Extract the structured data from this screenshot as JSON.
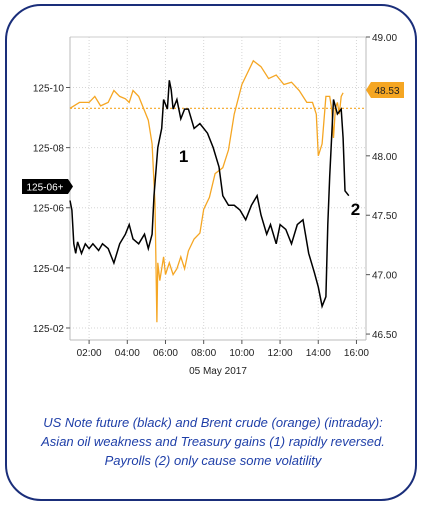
{
  "chart_data": {
    "type": "line",
    "date_label": "05 May 2017",
    "x_ticks": [
      "02:00",
      "04:00",
      "06:00",
      "08:00",
      "10:00",
      "12:00",
      "14:00",
      "16:00"
    ],
    "x_range": [
      1.0,
      16.5
    ],
    "left_axis": {
      "ticks": [
        "125-02",
        "125-04",
        "125-06",
        "125-08",
        "125-10"
      ],
      "tick_values": [
        125.0625,
        125.125,
        125.1875,
        125.25,
        125.3125
      ],
      "range": [
        125.05,
        125.365
      ],
      "last_value_label": "125-06+"
    },
    "right_axis": {
      "ticks": [
        "46.50",
        "47.00",
        "47.50",
        "48.00",
        "49.00"
      ],
      "tick_values": [
        46.5,
        47.0,
        47.5,
        48.0,
        49.0
      ],
      "range": [
        46.45,
        49.0
      ],
      "last_value_label": "48.53",
      "reference_level": 48.4
    },
    "series": [
      {
        "color": "#000000",
        "axis": "left",
        "x": [
          1.0,
          1.1,
          1.2,
          1.3,
          1.4,
          1.6,
          1.8,
          2.0,
          2.2,
          2.5,
          2.7,
          3.0,
          3.3,
          3.6,
          3.9,
          4.1,
          4.3,
          4.6,
          4.9,
          5.1,
          5.3,
          5.4,
          5.6,
          5.8,
          5.9,
          6.1,
          6.2,
          6.3,
          6.4,
          6.6,
          6.8,
          7.0,
          7.2,
          7.5,
          7.8,
          8.2,
          8.5,
          8.8,
          9.0,
          9.3,
          9.6,
          9.9,
          10.2,
          10.5,
          10.8,
          11.0,
          11.3,
          11.5,
          11.8,
          12.0,
          12.3,
          12.6,
          12.9,
          13.2,
          13.5,
          13.8,
          14.0,
          14.2,
          14.4,
          14.5,
          14.6,
          14.8,
          15.0,
          15.2,
          15.3,
          15.4,
          15.6
        ],
        "y": [
          125.195,
          125.185,
          125.15,
          125.14,
          125.152,
          125.14,
          125.15,
          125.145,
          125.15,
          125.143,
          125.15,
          125.145,
          125.13,
          125.15,
          125.16,
          125.17,
          125.155,
          125.15,
          125.16,
          125.145,
          125.16,
          125.2,
          125.25,
          125.27,
          125.3,
          125.29,
          125.32,
          125.31,
          125.29,
          125.3,
          125.28,
          125.29,
          125.29,
          125.27,
          125.275,
          125.265,
          125.25,
          125.23,
          125.2,
          125.19,
          125.19,
          125.185,
          125.175,
          125.19,
          125.2,
          125.18,
          125.16,
          125.17,
          125.15,
          125.17,
          125.165,
          125.15,
          125.17,
          125.175,
          125.14,
          125.12,
          125.105,
          125.085,
          125.095,
          125.17,
          125.22,
          125.3,
          125.285,
          125.29,
          125.26,
          125.205,
          125.2
        ]
      },
      {
        "color": "#f5a623",
        "axis": "right",
        "x": [
          1.0,
          1.5,
          2.0,
          2.3,
          2.6,
          3.0,
          3.3,
          3.6,
          3.9,
          4.1,
          4.3,
          4.6,
          4.9,
          5.1,
          5.3,
          5.45,
          5.55,
          5.6,
          5.7,
          5.8,
          5.9,
          6.0,
          6.2,
          6.4,
          6.6,
          6.8,
          7.0,
          7.2,
          7.5,
          7.8,
          8.0,
          8.3,
          8.6,
          9.0,
          9.3,
          9.6,
          10.0,
          10.3,
          10.6,
          11.0,
          11.4,
          11.8,
          12.2,
          12.6,
          13.0,
          13.4,
          13.7,
          13.9,
          14.0,
          14.2,
          14.4,
          14.6,
          14.7,
          14.8,
          14.9,
          15.0,
          15.1,
          15.2,
          15.3
        ],
        "y": [
          48.4,
          48.45,
          48.45,
          48.5,
          48.42,
          48.45,
          48.55,
          48.5,
          48.48,
          48.45,
          48.55,
          48.5,
          48.38,
          48.3,
          48.1,
          47.6,
          46.6,
          47.1,
          46.95,
          47.05,
          47.15,
          47.0,
          47.1,
          47.0,
          47.05,
          47.15,
          47.05,
          47.2,
          47.3,
          47.35,
          47.55,
          47.65,
          47.85,
          47.9,
          48.05,
          48.35,
          48.6,
          48.7,
          48.8,
          48.75,
          48.65,
          48.68,
          48.6,
          48.62,
          48.55,
          48.45,
          48.45,
          48.35,
          48.0,
          48.1,
          48.5,
          48.5,
          48.4,
          48.15,
          48.4,
          48.45,
          48.35,
          48.5,
          48.53
        ]
      }
    ],
    "annotations": [
      {
        "text": "1",
        "x": 6.7,
        "y_right": 47.95
      },
      {
        "text": "2",
        "x": 15.7,
        "y_right": 47.5
      }
    ]
  },
  "caption": {
    "line1": "US Note future (black) and Brent crude (orange) (intraday):",
    "line2": "Asian oil weakness and Treasury gains (1) rapidly reversed.",
    "line3": "Payrolls (2) only cause some volatility"
  },
  "colors": {
    "black_series": "#000000",
    "orange_series": "#f5a623",
    "border": "#1a2e7a",
    "caption": "#1f3fa8"
  }
}
